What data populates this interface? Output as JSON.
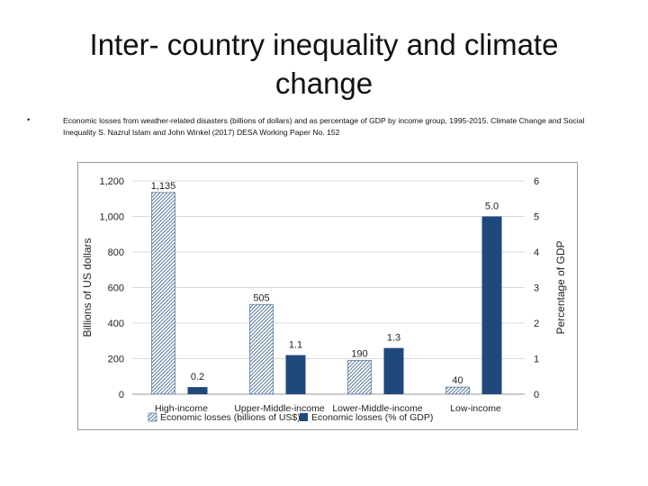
{
  "slide": {
    "title": "Inter- country inequality and climate change",
    "bullet_marker": "•",
    "caption": "Economic losses from weather-related disasters (billions of dollars) and as percentage of GDP by income group, 1995-2015. Climate Change and Social Inequality S. Nazrul Islam and John Winkel (2017) DESA Working Paper No. 152"
  },
  "chart_data": {
    "type": "bar",
    "categories": [
      "High-income",
      "Upper-Middle-income",
      "Lower-Middle-income",
      "Low-income"
    ],
    "series": [
      {
        "name": "Economic losses (billions of US$)",
        "axis": "left",
        "values": [
          1135,
          505,
          190,
          40
        ],
        "labels": [
          "1,135",
          "505",
          "190",
          "40"
        ],
        "color": "#8fa9c4",
        "pattern": "hatched"
      },
      {
        "name": "Economic losses (% of GDP)",
        "axis": "right",
        "values": [
          0.2,
          1.1,
          1.3,
          5.0
        ],
        "labels": [
          "0.2",
          "1.1",
          "1.3",
          "5.0"
        ],
        "color": "#1f497d",
        "pattern": "solid"
      }
    ],
    "ylabel": "Billions of US dollars",
    "y2label": "Percentage of GDP",
    "ylim": [
      0,
      1200
    ],
    "y2lim": [
      0,
      6
    ],
    "yticks": [
      "0",
      "200",
      "400",
      "600",
      "800",
      "1,000",
      "1,200"
    ],
    "y2ticks": [
      "0",
      "1",
      "2",
      "3",
      "4",
      "5",
      "6"
    ],
    "grid": true,
    "legend": "bottom"
  }
}
